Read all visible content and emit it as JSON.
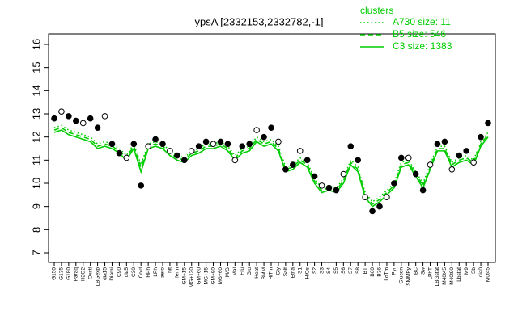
{
  "chart_data": {
    "type": "line",
    "title": "ypsA [2332153,2332782,-1]",
    "legend_title": "clusters",
    "categories": [
      "G150",
      "G135",
      "G180",
      "Paraq",
      "H2O2",
      "Oxctl",
      "LBGexp",
      "dia15",
      "Diami",
      "C90",
      "dia5",
      "C30",
      "Cold",
      "HPh",
      "LPh",
      "aero",
      "nit",
      "ferm",
      "GM+15",
      "MG+120",
      "GM+60",
      "MG+15",
      "GM+90",
      "MG+60",
      "M/G",
      "Mal",
      "Fru",
      "Glu",
      "Heat",
      "BMM",
      "HiTm",
      "Gly",
      "Salt",
      "Etha",
      "S1",
      "HiOs",
      "S2",
      "S3",
      "S4",
      "S5",
      "S6",
      "S7",
      "S8",
      "BT",
      "B60",
      "B36",
      "LoTm",
      "Pyr",
      "Glucon",
      "SMMPy",
      "BC",
      "Sw",
      "LPhT",
      "LBGstat",
      "M40t45",
      "M40t90",
      "Lbstat",
      "M9",
      "Sb",
      "dia0",
      "M0t45"
    ],
    "values": [
      12.8,
      13.1,
      12.9,
      12.7,
      12.6,
      12.8,
      12.4,
      12.9,
      11.7,
      11.3,
      11.1,
      11.7,
      9.9,
      11.6,
      11.9,
      11.7,
      11.4,
      11.2,
      11.0,
      11.4,
      11.6,
      11.8,
      11.7,
      11.8,
      11.7,
      11.0,
      11.6,
      11.7,
      12.3,
      12.0,
      12.4,
      11.8,
      10.6,
      10.8,
      11.4,
      11.0,
      10.3,
      9.9,
      9.8,
      9.7,
      10.4,
      11.6,
      11.0,
      9.4,
      8.8,
      9.0,
      9.4,
      10.0,
      11.1,
      11.1,
      10.4,
      9.7,
      10.8,
      11.7,
      11.8,
      10.6,
      11.2,
      11.4,
      10.9,
      12.0,
      12.6
    ],
    "point_color": "#000000",
    "series": [
      {
        "name": "A730 size: 11",
        "color": "#00cc00",
        "dash": "dotted",
        "values": [
          12.4,
          12.5,
          12.3,
          12.2,
          12.1,
          12.0,
          11.7,
          11.8,
          11.7,
          11.5,
          11.2,
          11.7,
          10.8,
          11.7,
          11.8,
          11.7,
          11.4,
          11.2,
          11.1,
          11.4,
          11.5,
          11.7,
          11.7,
          11.8,
          11.6,
          11.2,
          11.5,
          11.6,
          12.0,
          11.8,
          11.9,
          11.6,
          10.7,
          10.8,
          11.1,
          10.9,
          10.2,
          9.8,
          9.9,
          9.8,
          10.2,
          11.0,
          10.7,
          9.6,
          9.2,
          9.4,
          9.7,
          10.0,
          10.9,
          11.0,
          10.5,
          10.0,
          10.8,
          11.6,
          11.6,
          10.9,
          11.1,
          11.2,
          11.0,
          11.8,
          12.2
        ]
      },
      {
        "name": "B5 size: 546",
        "color": "#00cc00",
        "dash": "dashed",
        "values": [
          12.3,
          12.4,
          12.2,
          12.1,
          12.0,
          11.9,
          11.6,
          11.7,
          11.6,
          11.4,
          11.1,
          11.6,
          10.7,
          11.6,
          11.7,
          11.6,
          11.3,
          11.1,
          11.0,
          11.3,
          11.4,
          11.6,
          11.6,
          11.7,
          11.5,
          11.1,
          11.4,
          11.5,
          11.9,
          11.7,
          11.8,
          11.5,
          10.6,
          10.7,
          11.0,
          10.8,
          10.1,
          9.7,
          9.8,
          9.7,
          10.1,
          10.9,
          10.6,
          9.5,
          9.1,
          9.3,
          9.6,
          9.9,
          10.8,
          10.9,
          10.4,
          9.9,
          10.7,
          11.5,
          11.5,
          10.8,
          11.0,
          11.1,
          10.9,
          11.7,
          12.1
        ]
      },
      {
        "name": "C3 size: 1383",
        "color": "#00cc00",
        "dash": "solid",
        "values": [
          12.2,
          12.3,
          12.1,
          12.0,
          11.9,
          11.8,
          11.5,
          11.6,
          11.5,
          11.3,
          11.0,
          11.5,
          10.5,
          11.5,
          11.6,
          11.5,
          11.2,
          11.0,
          10.9,
          11.2,
          11.3,
          11.5,
          11.5,
          11.6,
          11.4,
          11.0,
          11.3,
          11.4,
          11.8,
          11.6,
          11.7,
          11.4,
          10.5,
          10.6,
          10.9,
          10.7,
          10.0,
          9.6,
          9.7,
          9.6,
          10.0,
          10.8,
          10.5,
          9.4,
          9.0,
          9.2,
          9.5,
          9.8,
          10.7,
          10.8,
          10.3,
          9.8,
          10.6,
          11.4,
          11.4,
          10.7,
          10.9,
          11.0,
          10.8,
          11.6,
          12.0
        ]
      }
    ],
    "ylim": [
      7,
      16
    ],
    "yticks": [
      7,
      8,
      9,
      10,
      11,
      12,
      13,
      14,
      15,
      16
    ]
  }
}
